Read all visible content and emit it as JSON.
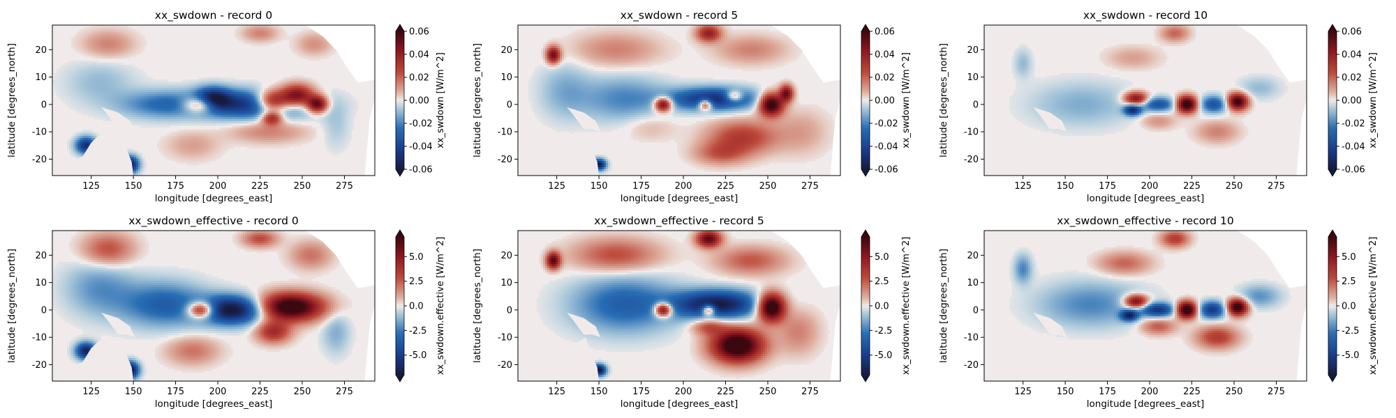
{
  "figure": {
    "rows": 2,
    "cols": 3
  },
  "chart_data": [
    {
      "type": "heatmap",
      "title": "xx_swdown - record 0",
      "variable": "swdown",
      "record": 0,
      "xlabel": "longitude [degrees_east]",
      "ylabel": "latitude [degrees_north]",
      "xlim": [
        102,
        293
      ],
      "ylim": [
        -26,
        29
      ],
      "xticks": [
        125,
        150,
        175,
        200,
        225,
        250,
        275
      ],
      "yticks": [
        -20,
        -10,
        0,
        10,
        20
      ],
      "colorbar": {
        "label": "xx_swdown [W/m^2]",
        "vmin": -0.06,
        "vmax": 0.06,
        "ticks": [
          "-0.06",
          "-0.04",
          "-0.02",
          "0.00",
          "0.02",
          "0.04",
          "0.06"
        ],
        "extend": "both",
        "colormap": "diverging blue-white-red"
      },
      "features": [
        {
          "lon": 222,
          "lat": 0,
          "sx": 32,
          "sy": 5,
          "v": -1.0
        },
        {
          "lon": 190,
          "lat": 0,
          "sx": 10,
          "sy": 3,
          "v": 1.0
        },
        {
          "lon": 197,
          "lat": 2,
          "sx": 10,
          "sy": 4,
          "v": -1.0
        },
        {
          "lon": 232,
          "lat": 1,
          "sx": 10,
          "sy": 4,
          "v": 1.3
        },
        {
          "lon": 247,
          "lat": 3,
          "sx": 10,
          "sy": 4,
          "v": 1.2
        },
        {
          "lon": 259,
          "lat": 0,
          "sx": 6,
          "sy": 3,
          "v": 1.2
        },
        {
          "lon": 232,
          "lat": -5,
          "sx": 6,
          "sy": 2.5,
          "v": 0.8
        },
        {
          "lon": 168,
          "lat": 0,
          "sx": 26,
          "sy": 5,
          "v": -0.5
        },
        {
          "lon": 130,
          "lat": 8,
          "sx": 20,
          "sy": 8,
          "v": -0.2
        },
        {
          "lon": 135,
          "lat": 22,
          "sx": 15,
          "sy": 5,
          "v": 0.3
        },
        {
          "lon": 225,
          "lat": 26,
          "sx": 10,
          "sy": 3,
          "v": 0.3
        },
        {
          "lon": 257,
          "lat": 22,
          "sx": 10,
          "sy": 4,
          "v": 0.25
        },
        {
          "lon": 230,
          "lat": -10,
          "sx": 22,
          "sy": 4,
          "v": 0.3
        },
        {
          "lon": 185,
          "lat": -15,
          "sx": 15,
          "sy": 5,
          "v": 0.2
        },
        {
          "lon": 122,
          "lat": -15,
          "sx": 6,
          "sy": 3,
          "v": -1.0
        },
        {
          "lon": 148,
          "lat": -22,
          "sx": 5,
          "sy": 3,
          "v": -1.2
        },
        {
          "lon": 270,
          "lat": -8,
          "sx": 8,
          "sy": 8,
          "v": -0.15
        }
      ]
    },
    {
      "type": "heatmap",
      "title": "xx_swdown - record 5",
      "variable": "swdown",
      "record": 5,
      "xlabel": "longitude [degrees_east]",
      "ylabel": "latitude [degrees_north]",
      "xlim": [
        102,
        293
      ],
      "ylim": [
        -26,
        29
      ],
      "xticks": [
        125,
        150,
        175,
        200,
        225,
        250,
        275
      ],
      "yticks": [
        -20,
        -10,
        0,
        10,
        20
      ],
      "colorbar": {
        "label": "xx_swdown [W/m^2]",
        "vmin": -0.06,
        "vmax": 0.06,
        "ticks": [
          "-0.06",
          "-0.04",
          "-0.02",
          "0.00",
          "0.02",
          "0.04",
          "0.06"
        ],
        "extend": "both",
        "colormap": "diverging blue-white-red"
      },
      "features": [
        {
          "lon": 218,
          "lat": 2,
          "sx": 25,
          "sy": 4,
          "v": -1.0
        },
        {
          "lon": 188,
          "lat": 0,
          "sx": 5,
          "sy": 2.5,
          "v": 1.2
        },
        {
          "lon": 213,
          "lat": 0,
          "sx": 4,
          "sy": 2,
          "v": 1.0
        },
        {
          "lon": 230,
          "lat": 3,
          "sx": 5,
          "sy": 2,
          "v": 0.8
        },
        {
          "lon": 252,
          "lat": 0,
          "sx": 7,
          "sy": 4,
          "v": 1.4
        },
        {
          "lon": 261,
          "lat": 4,
          "sx": 4,
          "sy": 3,
          "v": 1.0
        },
        {
          "lon": 165,
          "lat": 2,
          "sx": 25,
          "sy": 8,
          "v": -0.4
        },
        {
          "lon": 130,
          "lat": 5,
          "sx": 15,
          "sy": 10,
          "v": -0.25
        },
        {
          "lon": 123,
          "lat": 18,
          "sx": 4,
          "sy": 3,
          "v": 1.0
        },
        {
          "lon": 160,
          "lat": 20,
          "sx": 25,
          "sy": 6,
          "v": 0.3
        },
        {
          "lon": 215,
          "lat": 26,
          "sx": 7,
          "sy": 3,
          "v": 0.8
        },
        {
          "lon": 240,
          "lat": 20,
          "sx": 20,
          "sy": 5,
          "v": 0.3
        },
        {
          "lon": 235,
          "lat": -12,
          "sx": 20,
          "sy": 6,
          "v": 0.6
        },
        {
          "lon": 222,
          "lat": -18,
          "sx": 15,
          "sy": 4,
          "v": 0.4
        },
        {
          "lon": 270,
          "lat": -10,
          "sx": 15,
          "sy": 8,
          "v": 0.2
        },
        {
          "lon": 150,
          "lat": -22,
          "sx": 4,
          "sy": 2,
          "v": -1.2
        },
        {
          "lon": 180,
          "lat": -8,
          "sx": 15,
          "sy": 5,
          "v": 0.15
        }
      ]
    },
    {
      "type": "heatmap",
      "title": "xx_swdown - record 10",
      "variable": "swdown",
      "record": 10,
      "xlabel": "longitude [degrees_east]",
      "ylabel": "latitude [degrees_north]",
      "xlim": [
        102,
        293
      ],
      "ylim": [
        -26,
        29
      ],
      "xticks": [
        125,
        150,
        175,
        200,
        225,
        250,
        275
      ],
      "yticks": [
        -20,
        -10,
        0,
        10,
        20
      ],
      "colorbar": {
        "label": "xx_swdown [W/m^2]",
        "vmin": -0.06,
        "vmax": 0.06,
        "ticks": [
          "-0.06",
          "-0.04",
          "-0.02",
          "0.00",
          "0.02",
          "0.04",
          "0.06"
        ],
        "extend": "both",
        "colormap": "diverging blue-white-red"
      },
      "features": [
        {
          "lon": 192,
          "lat": 2,
          "sx": 7,
          "sy": 2.5,
          "v": 1.0
        },
        {
          "lon": 190,
          "lat": -2,
          "sx": 5,
          "sy": 2,
          "v": -1.0
        },
        {
          "lon": 205,
          "lat": 0,
          "sx": 10,
          "sy": 2.5,
          "v": -0.7
        },
        {
          "lon": 222,
          "lat": 0,
          "sx": 6,
          "sy": 3,
          "v": 1.4
        },
        {
          "lon": 238,
          "lat": 0,
          "sx": 8,
          "sy": 3,
          "v": -0.7
        },
        {
          "lon": 252,
          "lat": 1,
          "sx": 6,
          "sy": 3,
          "v": 1.3
        },
        {
          "lon": 160,
          "lat": 0,
          "sx": 30,
          "sy": 8,
          "v": -0.25
        },
        {
          "lon": 215,
          "lat": 26,
          "sx": 8,
          "sy": 3,
          "v": 0.4
        },
        {
          "lon": 190,
          "lat": 17,
          "sx": 15,
          "sy": 4,
          "v": 0.2
        },
        {
          "lon": 240,
          "lat": -10,
          "sx": 12,
          "sy": 4,
          "v": 0.3
        },
        {
          "lon": 205,
          "lat": -6,
          "sx": 10,
          "sy": 3,
          "v": 0.25
        },
        {
          "lon": 265,
          "lat": 6,
          "sx": 12,
          "sy": 4,
          "v": -0.2
        },
        {
          "lon": 125,
          "lat": 15,
          "sx": 5,
          "sy": 5,
          "v": -0.2
        }
      ]
    },
    {
      "type": "heatmap",
      "title": "xx_swdown_effective - record 0",
      "variable": "swdown_effective",
      "record": 0,
      "xlabel": "longitude [degrees_east]",
      "ylabel": "latitude [degrees_north]",
      "xlim": [
        102,
        293
      ],
      "ylim": [
        -26,
        29
      ],
      "xticks": [
        125,
        150,
        175,
        200,
        225,
        250,
        275
      ],
      "yticks": [
        -20,
        -10,
        0,
        10,
        20
      ],
      "colorbar": {
        "label": "xx_swdown.effective [W/m^2]",
        "vmin": -7.0,
        "vmax": 7.0,
        "ticks": [
          "-5.0",
          "-2.5",
          "0.0",
          "2.5",
          "5.0"
        ],
        "extend": "both",
        "colormap": "diverging blue-white-red"
      },
      "features": [
        {
          "lon": 210,
          "lat": 0,
          "sx": 20,
          "sy": 5,
          "v": -1.3
        },
        {
          "lon": 190,
          "lat": 0,
          "sx": 8,
          "sy": 3,
          "v": 1.2
        },
        {
          "lon": 242,
          "lat": 1,
          "sx": 20,
          "sy": 5,
          "v": 1.5
        },
        {
          "lon": 233,
          "lat": -8,
          "sx": 10,
          "sy": 4,
          "v": 0.7
        },
        {
          "lon": 168,
          "lat": 2,
          "sx": 25,
          "sy": 8,
          "v": -0.6
        },
        {
          "lon": 130,
          "lat": 8,
          "sx": 20,
          "sy": 10,
          "v": -0.35
        },
        {
          "lon": 135,
          "lat": 22,
          "sx": 15,
          "sy": 6,
          "v": 0.5
        },
        {
          "lon": 225,
          "lat": 26,
          "sx": 10,
          "sy": 3,
          "v": 0.5
        },
        {
          "lon": 255,
          "lat": 20,
          "sx": 12,
          "sy": 5,
          "v": 0.35
        },
        {
          "lon": 185,
          "lat": -15,
          "sx": 15,
          "sy": 5,
          "v": 0.35
        },
        {
          "lon": 122,
          "lat": -15,
          "sx": 6,
          "sy": 3,
          "v": -1.1
        },
        {
          "lon": 148,
          "lat": -22,
          "sx": 5,
          "sy": 3,
          "v": -1.3
        },
        {
          "lon": 270,
          "lat": -8,
          "sx": 8,
          "sy": 8,
          "v": -0.25
        }
      ]
    },
    {
      "type": "heatmap",
      "title": "xx_swdown_effective - record 5",
      "variable": "swdown_effective",
      "record": 5,
      "xlabel": "longitude [degrees_east]",
      "ylabel": "latitude [degrees_north]",
      "xlim": [
        102,
        293
      ],
      "ylim": [
        -26,
        29
      ],
      "xticks": [
        125,
        150,
        175,
        200,
        225,
        250,
        275
      ],
      "yticks": [
        -20,
        -10,
        0,
        10,
        20
      ],
      "colorbar": {
        "label": "xx_swdown.effective [W/m^2]",
        "vmin": -7.0,
        "vmax": 7.0,
        "ticks": [
          "-5.0",
          "-2.5",
          "0.0",
          "2.5",
          "5.0"
        ],
        "extend": "both",
        "colormap": "diverging blue-white-red"
      },
      "features": [
        {
          "lon": 220,
          "lat": 2,
          "sx": 25,
          "sy": 5,
          "v": -1.2
        },
        {
          "lon": 188,
          "lat": 0,
          "sx": 5,
          "sy": 2.5,
          "v": 1.3
        },
        {
          "lon": 215,
          "lat": 0,
          "sx": 4,
          "sy": 2,
          "v": 1.1
        },
        {
          "lon": 252,
          "lat": 1,
          "sx": 8,
          "sy": 5,
          "v": 1.6
        },
        {
          "lon": 232,
          "lat": -13,
          "sx": 15,
          "sy": 6,
          "v": 1.5
        },
        {
          "lon": 215,
          "lat": -6,
          "sx": 10,
          "sy": 3,
          "v": 0.5
        },
        {
          "lon": 165,
          "lat": 2,
          "sx": 30,
          "sy": 10,
          "v": -0.6
        },
        {
          "lon": 123,
          "lat": 18,
          "sx": 4,
          "sy": 3,
          "v": 1.1
        },
        {
          "lon": 160,
          "lat": 20,
          "sx": 25,
          "sy": 6,
          "v": 0.5
        },
        {
          "lon": 215,
          "lat": 26,
          "sx": 7,
          "sy": 3,
          "v": 1.1
        },
        {
          "lon": 240,
          "lat": 18,
          "sx": 20,
          "sy": 5,
          "v": 0.45
        },
        {
          "lon": 150,
          "lat": -22,
          "sx": 4,
          "sy": 2,
          "v": -1.3
        },
        {
          "lon": 268,
          "lat": -8,
          "sx": 12,
          "sy": 8,
          "v": 0.3
        }
      ]
    },
    {
      "type": "heatmap",
      "title": "xx_swdown_effective - record 10",
      "variable": "swdown_effective",
      "record": 10,
      "xlabel": "longitude [degrees_east]",
      "ylabel": "latitude [degrees_north]",
      "xlim": [
        102,
        293
      ],
      "ylim": [
        -26,
        29
      ],
      "xticks": [
        125,
        150,
        175,
        200,
        225,
        250,
        275
      ],
      "yticks": [
        -20,
        -10,
        0,
        10,
        20
      ],
      "colorbar": {
        "label": "xx_swdown.effective [W/m^2]",
        "vmin": -7.0,
        "vmax": 7.0,
        "ticks": [
          "-5.0",
          "-2.5",
          "0.0",
          "2.5",
          "5.0"
        ],
        "extend": "both",
        "colormap": "diverging blue-white-red"
      },
      "features": [
        {
          "lon": 192,
          "lat": 3,
          "sx": 7,
          "sy": 2.5,
          "v": 1.1
        },
        {
          "lon": 188,
          "lat": -2,
          "sx": 5,
          "sy": 2,
          "v": -1.0
        },
        {
          "lon": 205,
          "lat": 0,
          "sx": 10,
          "sy": 2.5,
          "v": -0.9
        },
        {
          "lon": 222,
          "lat": 0,
          "sx": 6,
          "sy": 3,
          "v": 1.5
        },
        {
          "lon": 237,
          "lat": 0,
          "sx": 8,
          "sy": 3,
          "v": -0.9
        },
        {
          "lon": 252,
          "lat": 1,
          "sx": 6,
          "sy": 3,
          "v": 1.4
        },
        {
          "lon": 165,
          "lat": 2,
          "sx": 30,
          "sy": 8,
          "v": -0.4
        },
        {
          "lon": 215,
          "lat": 26,
          "sx": 8,
          "sy": 3,
          "v": 0.6
        },
        {
          "lon": 185,
          "lat": 17,
          "sx": 15,
          "sy": 4,
          "v": 0.4
        },
        {
          "lon": 240,
          "lat": -10,
          "sx": 12,
          "sy": 4,
          "v": 0.6
        },
        {
          "lon": 205,
          "lat": -6,
          "sx": 10,
          "sy": 3,
          "v": 0.45
        },
        {
          "lon": 265,
          "lat": 5,
          "sx": 12,
          "sy": 4,
          "v": -0.35
        },
        {
          "lon": 125,
          "lat": 15,
          "sx": 5,
          "sy": 5,
          "v": -0.4
        }
      ]
    }
  ]
}
